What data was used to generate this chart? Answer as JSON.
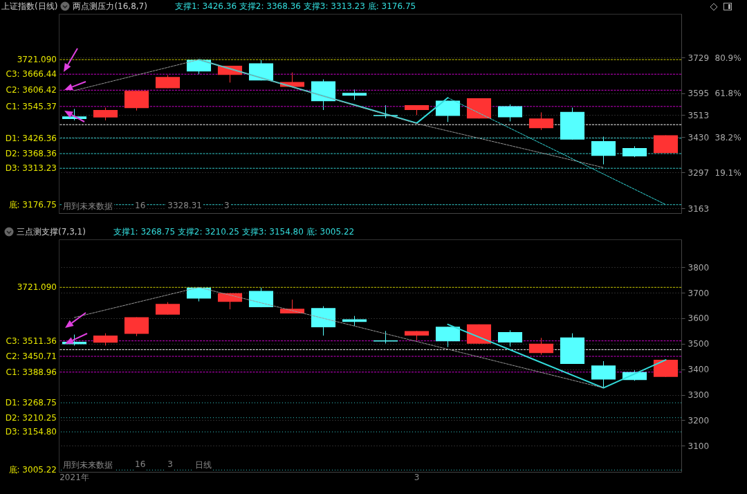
{
  "chart_data": [
    {
      "type": "candlestick",
      "title": "上证指数(日线)",
      "subtitle": "两点测压力(16,8,7)",
      "categories": [
        null,
        null,
        null,
        null,
        null,
        null,
        null,
        null,
        null,
        null,
        null,
        null,
        null,
        null,
        null,
        null,
        null,
        null,
        null,
        null
      ],
      "ohlc": [
        [
          3508,
          3536,
          3493,
          3498
        ],
        [
          3504,
          3541,
          3493,
          3532
        ],
        [
          3539,
          3604,
          3530,
          3604
        ],
        [
          3614,
          3663,
          3614,
          3656
        ],
        [
          3720,
          3721,
          3666,
          3677
        ],
        [
          3664,
          3698,
          3635,
          3698
        ],
        [
          3707,
          3720,
          3643,
          3643
        ],
        [
          3619,
          3673,
          3619,
          3637
        ],
        [
          3640,
          3647,
          3532,
          3565
        ],
        [
          3596,
          3609,
          3570,
          3586
        ],
        [
          3513,
          3550,
          3501,
          3509
        ],
        [
          3532,
          3550,
          3513,
          3550
        ],
        [
          3567,
          3567,
          3487,
          3510
        ],
        [
          3500,
          3576,
          3500,
          3576
        ],
        [
          3546,
          3553,
          3489,
          3505
        ],
        [
          3464,
          3523,
          3457,
          3500
        ],
        [
          3525,
          3541,
          3421,
          3421
        ],
        [
          3415,
          3432,
          3328,
          3360
        ],
        [
          3389,
          3396,
          3355,
          3358
        ],
        [
          3370,
          3437,
          3370,
          3437
        ]
      ],
      "colors": [
        "#55ffff",
        "#ff3333",
        "#ff3333",
        "#ff3333",
        "#55ffff",
        "#ff3333",
        "#55ffff",
        "#ff3333",
        "#55ffff",
        "#55ffff",
        "#55ffff",
        "#ff3333",
        "#55ffff",
        "#ff3333",
        "#55ffff",
        "#ff3333",
        "#55ffff",
        "#55ffff",
        "#55ffff",
        "#ff3333"
      ],
      "series": [
        {
          "type": "line",
          "color": "#999999",
          "line_style": "dashed",
          "values": [
            3605,
            null,
            null,
            null,
            3721,
            null,
            null,
            null,
            null,
            null,
            null,
            3481,
            null,
            null,
            null,
            null,
            null,
            3316,
            null,
            null
          ]
        },
        {
          "type": "line",
          "color": "#33dddd",
          "line_style": "dashed",
          "values": [
            null,
            null,
            null,
            null,
            null,
            null,
            null,
            null,
            null,
            null,
            null,
            null,
            3578,
            null,
            null,
            null,
            null,
            null,
            null,
            3177
          ]
        },
        {
          "type": "line",
          "color": "#33dddd",
          "line_style": "solid",
          "values": [
            null,
            null,
            null,
            null,
            3721,
            null,
            null,
            null,
            null,
            null,
            null,
            3483,
            3578,
            null,
            null,
            null,
            null,
            null,
            null,
            null
          ]
        }
      ],
      "ylim": [
        3145,
        3893
      ],
      "yticks": [
        3729,
        3595,
        3513,
        3430,
        3297,
        3163
      ],
      "y2lim": [
        -2.6,
        104.4
      ],
      "y2ticks": [
        {
          "value": 80.9,
          "label": "80.9%"
        },
        {
          "value": 61.8,
          "label": "61.8%"
        },
        {
          "value": 38.2,
          "label": "38.2%"
        },
        {
          "value": 19.1,
          "label": "19.1%"
        }
      ],
      "grid": "y",
      "tick_labels": "y",
      "ref_lines": [
        {
          "axis": "y",
          "value": 3721.09,
          "label": "3721.090",
          "color": "#cccc00",
          "line_style": "dashed"
        },
        {
          "axis": "y",
          "value": 3477,
          "color": "#ffffff",
          "line_style": "dashed"
        },
        {
          "axis": "y",
          "value": 3666.44,
          "label": "C3: 3666.44",
          "color": "#cc00cc",
          "line_style": "dashed"
        },
        {
          "axis": "y",
          "value": 3606.42,
          "label": "C2: 3606.42",
          "color": "#cc00cc",
          "line_style": "dashed"
        },
        {
          "axis": "y",
          "value": 3545.37,
          "label": "C1: 3545.37",
          "color": "#cc00cc",
          "line_style": "dashed"
        },
        {
          "axis": "y",
          "value": 3426.36,
          "label": "D1: 3426.36",
          "color": "#33cccc",
          "line_style": "dashed"
        },
        {
          "axis": "y",
          "value": 3368.36,
          "label": "D2: 3368.36",
          "color": "#33cccc",
          "line_style": "dashed"
        },
        {
          "axis": "y",
          "value": 3313.23,
          "label": "D3: 3313.23",
          "color": "#33cccc",
          "line_style": "dashed"
        },
        {
          "axis": "y",
          "value": 3176.75,
          "label": "底: 3176.75",
          "color": "#33cccc",
          "line_style": "dashed"
        }
      ],
      "annotations": [
        "支撑1: 3426.36 支撑2: 3368.36 支撑3: 3313.23 底: 3176.75",
        "用到未来数据",
        "16",
        "3328.31",
        "3"
      ]
    },
    {
      "type": "candlestick",
      "title": "三点测支撑(7,3,1)",
      "categories": [
        "2021年",
        null,
        null,
        null,
        null,
        null,
        null,
        null,
        null,
        null,
        null,
        "3",
        null,
        null,
        null,
        null,
        null,
        null,
        null,
        null
      ],
      "ohlc": [
        [
          3508,
          3536,
          3493,
          3498
        ],
        [
          3504,
          3541,
          3493,
          3532
        ],
        [
          3539,
          3604,
          3530,
          3604
        ],
        [
          3614,
          3663,
          3614,
          3656
        ],
        [
          3720,
          3721,
          3666,
          3677
        ],
        [
          3664,
          3698,
          3635,
          3698
        ],
        [
          3707,
          3720,
          3643,
          3643
        ],
        [
          3619,
          3673,
          3619,
          3637
        ],
        [
          3640,
          3647,
          3532,
          3565
        ],
        [
          3596,
          3609,
          3570,
          3586
        ],
        [
          3513,
          3550,
          3501,
          3509
        ],
        [
          3532,
          3550,
          3513,
          3550
        ],
        [
          3567,
          3567,
          3487,
          3510
        ],
        [
          3500,
          3576,
          3500,
          3576
        ],
        [
          3546,
          3553,
          3489,
          3505
        ],
        [
          3464,
          3523,
          3457,
          3500
        ],
        [
          3525,
          3541,
          3421,
          3421
        ],
        [
          3415,
          3432,
          3328,
          3360
        ],
        [
          3389,
          3396,
          3355,
          3358
        ],
        [
          3370,
          3437,
          3370,
          3437
        ]
      ],
      "colors": [
        "#55ffff",
        "#ff3333",
        "#ff3333",
        "#ff3333",
        "#55ffff",
        "#ff3333",
        "#55ffff",
        "#ff3333",
        "#55ffff",
        "#55ffff",
        "#55ffff",
        "#ff3333",
        "#55ffff",
        "#ff3333",
        "#55ffff",
        "#ff3333",
        "#55ffff",
        "#55ffff",
        "#55ffff",
        "#ff3333"
      ],
      "series": [
        {
          "type": "line",
          "color": "#999999",
          "line_style": "dashed",
          "values": [
            3603,
            null,
            null,
            null,
            3721,
            null,
            null,
            null,
            null,
            null,
            null,
            null,
            null,
            null,
            null,
            null,
            null,
            3327,
            null,
            null
          ]
        },
        {
          "type": "line",
          "color": "#33dddd",
          "line_style": "solid",
          "values": [
            null,
            null,
            null,
            null,
            null,
            null,
            null,
            null,
            null,
            null,
            null,
            null,
            3576,
            null,
            null,
            null,
            null,
            3327,
            null,
            3437
          ]
        }
      ],
      "ylim": [
        2998,
        3909
      ],
      "yticks": [
        3100,
        3200,
        3300,
        3400,
        3500,
        3600,
        3700,
        3800
      ],
      "grid": "y",
      "ref_lines": [
        {
          "axis": "y",
          "value": 3721.09,
          "label": "3721.090",
          "color": "#cccc00",
          "line_style": "dashed"
        },
        {
          "axis": "y",
          "value": 3477,
          "color": "#ffffff",
          "line_style": "dashed"
        },
        {
          "axis": "y",
          "value": 3511.36,
          "label": "C3: 3511.36",
          "color": "#cc00cc",
          "line_style": "dashed"
        },
        {
          "axis": "y",
          "value": 3450.71,
          "label": "C2: 3450.71",
          "color": "#cc00cc",
          "line_style": "dashed"
        },
        {
          "axis": "y",
          "value": 3388.96,
          "label": "C1: 3388.96",
          "color": "#cc00cc",
          "line_style": "dashed"
        },
        {
          "axis": "y",
          "value": 3268.75,
          "label": "D1: 3268.75",
          "color": "#33cccc",
          "line_style": "dotted"
        },
        {
          "axis": "y",
          "value": 3210.25,
          "label": "D2: 3210.25",
          "color": "#33cccc",
          "line_style": "dotted"
        },
        {
          "axis": "y",
          "value": 3154.8,
          "label": "D3: 3154.80",
          "color": "#33cccc",
          "line_style": "dotted"
        },
        {
          "axis": "y",
          "value": 3005.22,
          "label": "底: 3005.22",
          "color": "#33cccc",
          "line_style": "dotted"
        }
      ],
      "annotations": [
        "支撑1: 3268.75 支撑2: 3210.25 支撑3: 3154.80 底: 3005.22",
        "用到未来数据",
        "16",
        "3",
        "日线"
      ]
    }
  ]
}
